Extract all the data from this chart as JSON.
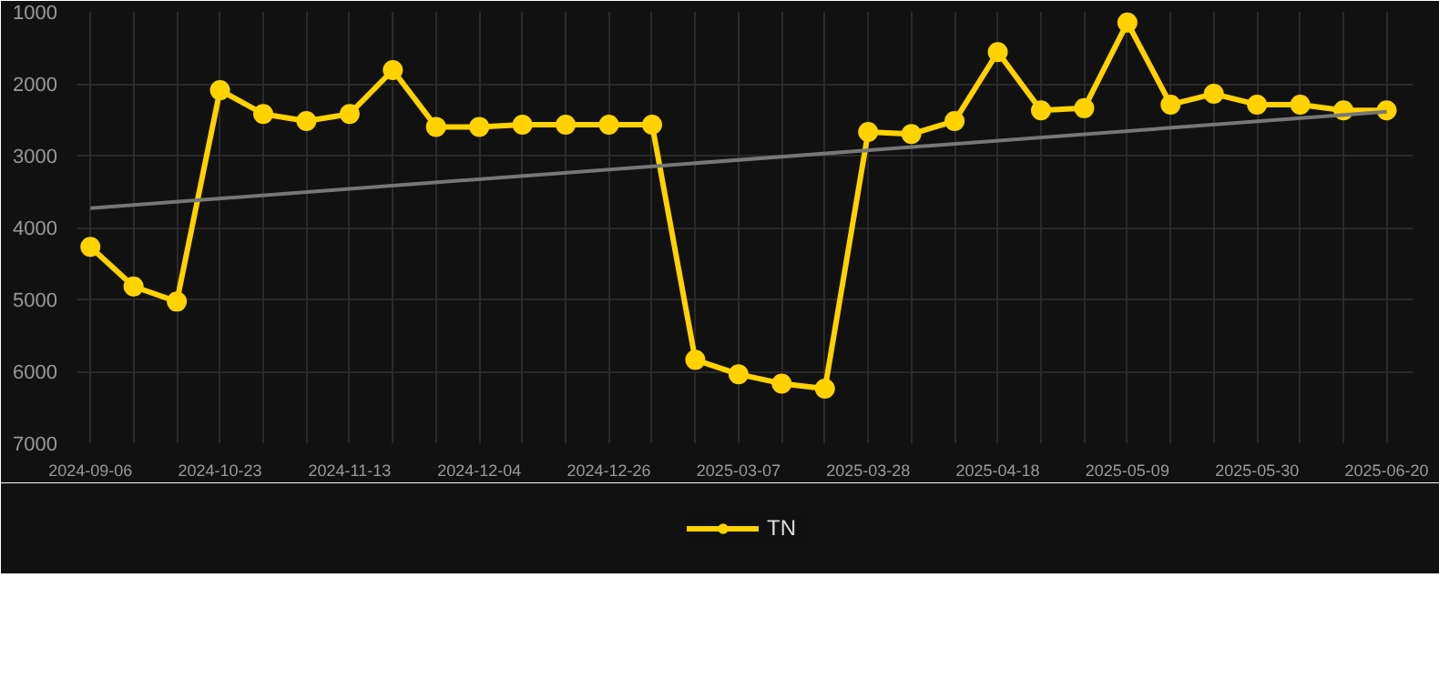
{
  "chart_data": {
    "type": "line",
    "categories": [
      "2024-09-06",
      null,
      null,
      "2024-10-23",
      null,
      null,
      "2024-11-13",
      null,
      null,
      "2024-12-04",
      null,
      null,
      "2024-12-26",
      null,
      null,
      "2025-03-07",
      null,
      null,
      "2025-03-28",
      null,
      null,
      "2025-04-18",
      null,
      null,
      "2025-05-09",
      null,
      null,
      "2025-05-30",
      null,
      null,
      "2025-06-20"
    ],
    "series": [
      {
        "name": "TN",
        "color": "#ffd200",
        "marker": "circle",
        "values": [
          4270,
          4820,
          5030,
          2090,
          2420,
          2520,
          2420,
          1810,
          2600,
          2600,
          2570,
          2570,
          2570,
          2570,
          5840,
          6040,
          6170,
          6240,
          2670,
          2700,
          2520,
          1560,
          2370,
          2340,
          1150,
          2290,
          2140,
          2290,
          2290,
          2370,
          2370
        ]
      },
      {
        "type": "line",
        "color": "#777777",
        "marker": "none",
        "values": [
          3730,
          null,
          null,
          null,
          null,
          null,
          null,
          null,
          null,
          null,
          null,
          null,
          null,
          null,
          null,
          null,
          null,
          null,
          null,
          null,
          null,
          null,
          null,
          null,
          null,
          null,
          null,
          null,
          null,
          null,
          2390
        ]
      }
    ],
    "ylim": [
      7000,
      1000
    ],
    "yticks": [
      1000,
      2000,
      3000,
      4000,
      5000,
      6000,
      7000
    ],
    "grid": true,
    "legend": "bottom"
  }
}
